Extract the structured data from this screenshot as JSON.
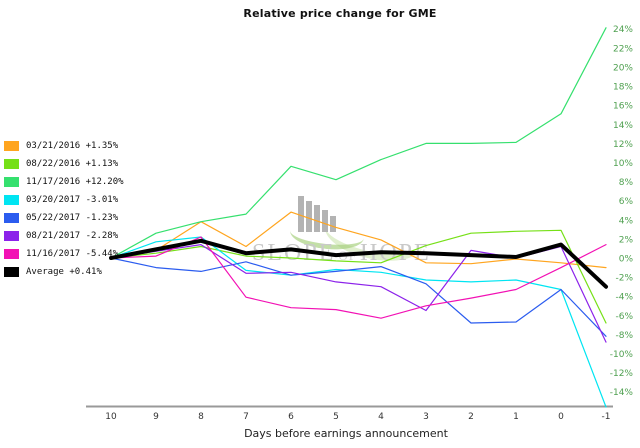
{
  "title": "Relative price change for GME",
  "watermark": {
    "word1": "SLOPE",
    "word2": "OF",
    "word3": "HOPE"
  },
  "colors": {
    "axis_line": "#999999",
    "ytick_text": "#4fa050",
    "xtick_text": "#333333",
    "watermark_text": "#c9c9c9",
    "accent_black": "#000000"
  },
  "chart_data": {
    "type": "line",
    "title": "Relative price change for GME",
    "xlabel": "Days before earnings announcement",
    "ylabel": "",
    "x": [
      10,
      9,
      8,
      7,
      6,
      5,
      4,
      3,
      2,
      1,
      0,
      -1
    ],
    "ylim": [
      -16,
      25
    ],
    "yticks": [
      24,
      22,
      20,
      18,
      16,
      14,
      12,
      10,
      8,
      6,
      4,
      2,
      0,
      -2,
      -4,
      -6,
      -8,
      -10,
      -12,
      -14
    ],
    "ytick_suffix": "%",
    "grid": false,
    "legend_position": "left",
    "series": [
      {
        "name": "03/21/2016",
        "change": "+1.35%",
        "color": "#FFA51F",
        "values": [
          0,
          0.8,
          3.8,
          1.2,
          4.8,
          3.2,
          1.9,
          -0.5,
          -0.6,
          -0.1,
          -0.5,
          -1.0
        ]
      },
      {
        "name": "08/22/2016",
        "change": "+1.13%",
        "color": "#76E017",
        "values": [
          0,
          0.5,
          1.2,
          0.2,
          0.0,
          -0.3,
          -0.5,
          1.3,
          2.6,
          2.8,
          2.9,
          -6.8
        ]
      },
      {
        "name": "11/17/2016",
        "change": "+12.20%",
        "color": "#35E06E",
        "values": [
          0,
          2.6,
          3.8,
          4.6,
          9.6,
          8.2,
          10.3,
          12.0,
          12.0,
          12.1,
          15.1,
          24.1
        ]
      },
      {
        "name": "03/20/2017",
        "change": "-3.01%",
        "color": "#00E5F2",
        "values": [
          0,
          1.7,
          2.2,
          -1.3,
          -1.8,
          -1.2,
          -1.5,
          -2.3,
          -2.5,
          -2.3,
          -3.3,
          -15.6
        ]
      },
      {
        "name": "05/22/2017",
        "change": "-1.23%",
        "color": "#2B5CEF",
        "values": [
          0,
          -1.0,
          -1.4,
          -0.4,
          -1.8,
          -1.4,
          -0.9,
          -2.7,
          -6.8,
          -6.7,
          -3.3,
          -8.2
        ]
      },
      {
        "name": "08/21/2017",
        "change": "-2.28%",
        "color": "#8C22EA",
        "values": [
          0,
          0.7,
          1.4,
          -1.6,
          -1.5,
          -2.5,
          -3.0,
          -5.5,
          0.8,
          0.0,
          1.2,
          -8.8
        ]
      },
      {
        "name": "11/16/2017",
        "change": "-5.44%",
        "color": "#F211B4",
        "values": [
          0,
          0.2,
          2.2,
          -4.1,
          -5.2,
          -5.4,
          -6.3,
          -5.0,
          -4.2,
          -3.3,
          -1.0,
          1.4
        ]
      },
      {
        "name": "Average",
        "change": "+0.41%",
        "color": "#000000",
        "width": 4,
        "values": [
          0,
          0.9,
          1.8,
          0.5,
          0.9,
          0.3,
          0.6,
          0.5,
          0.3,
          0.1,
          1.4,
          -3.0
        ]
      }
    ]
  }
}
